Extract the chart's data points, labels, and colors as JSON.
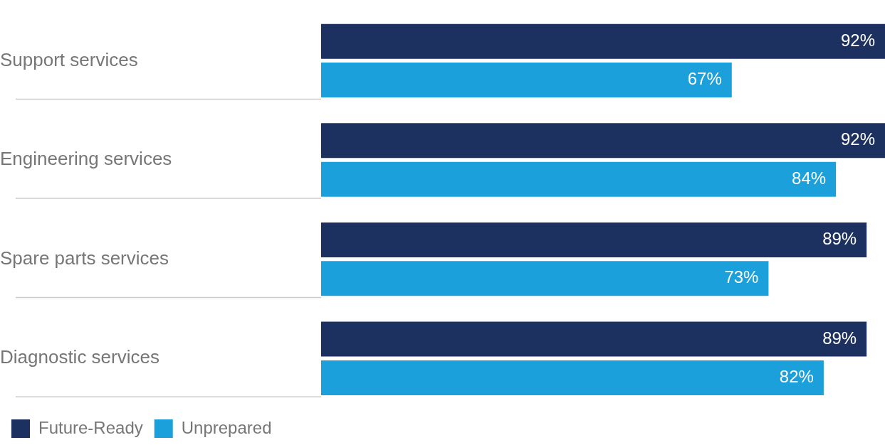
{
  "chart_data": {
    "type": "bar",
    "orientation": "horizontal",
    "categories": [
      "Support services",
      "Engineering services",
      "Spare parts services",
      "Diagnostic services"
    ],
    "series": [
      {
        "name": "Future-Ready",
        "color": "#1d3160",
        "values": [
          92,
          92,
          89,
          89
        ],
        "value_labels": [
          "92%",
          "92%",
          "89%",
          "89%"
        ]
      },
      {
        "name": "Unprepared",
        "color": "#1ca0dc",
        "values": [
          67,
          84,
          73,
          82
        ],
        "value_labels": [
          "67%",
          "84%",
          "73%",
          "82%"
        ]
      }
    ],
    "xlim": [
      0,
      92
    ],
    "tick_labels": "y",
    "grid": false,
    "legend": "bottom left"
  }
}
